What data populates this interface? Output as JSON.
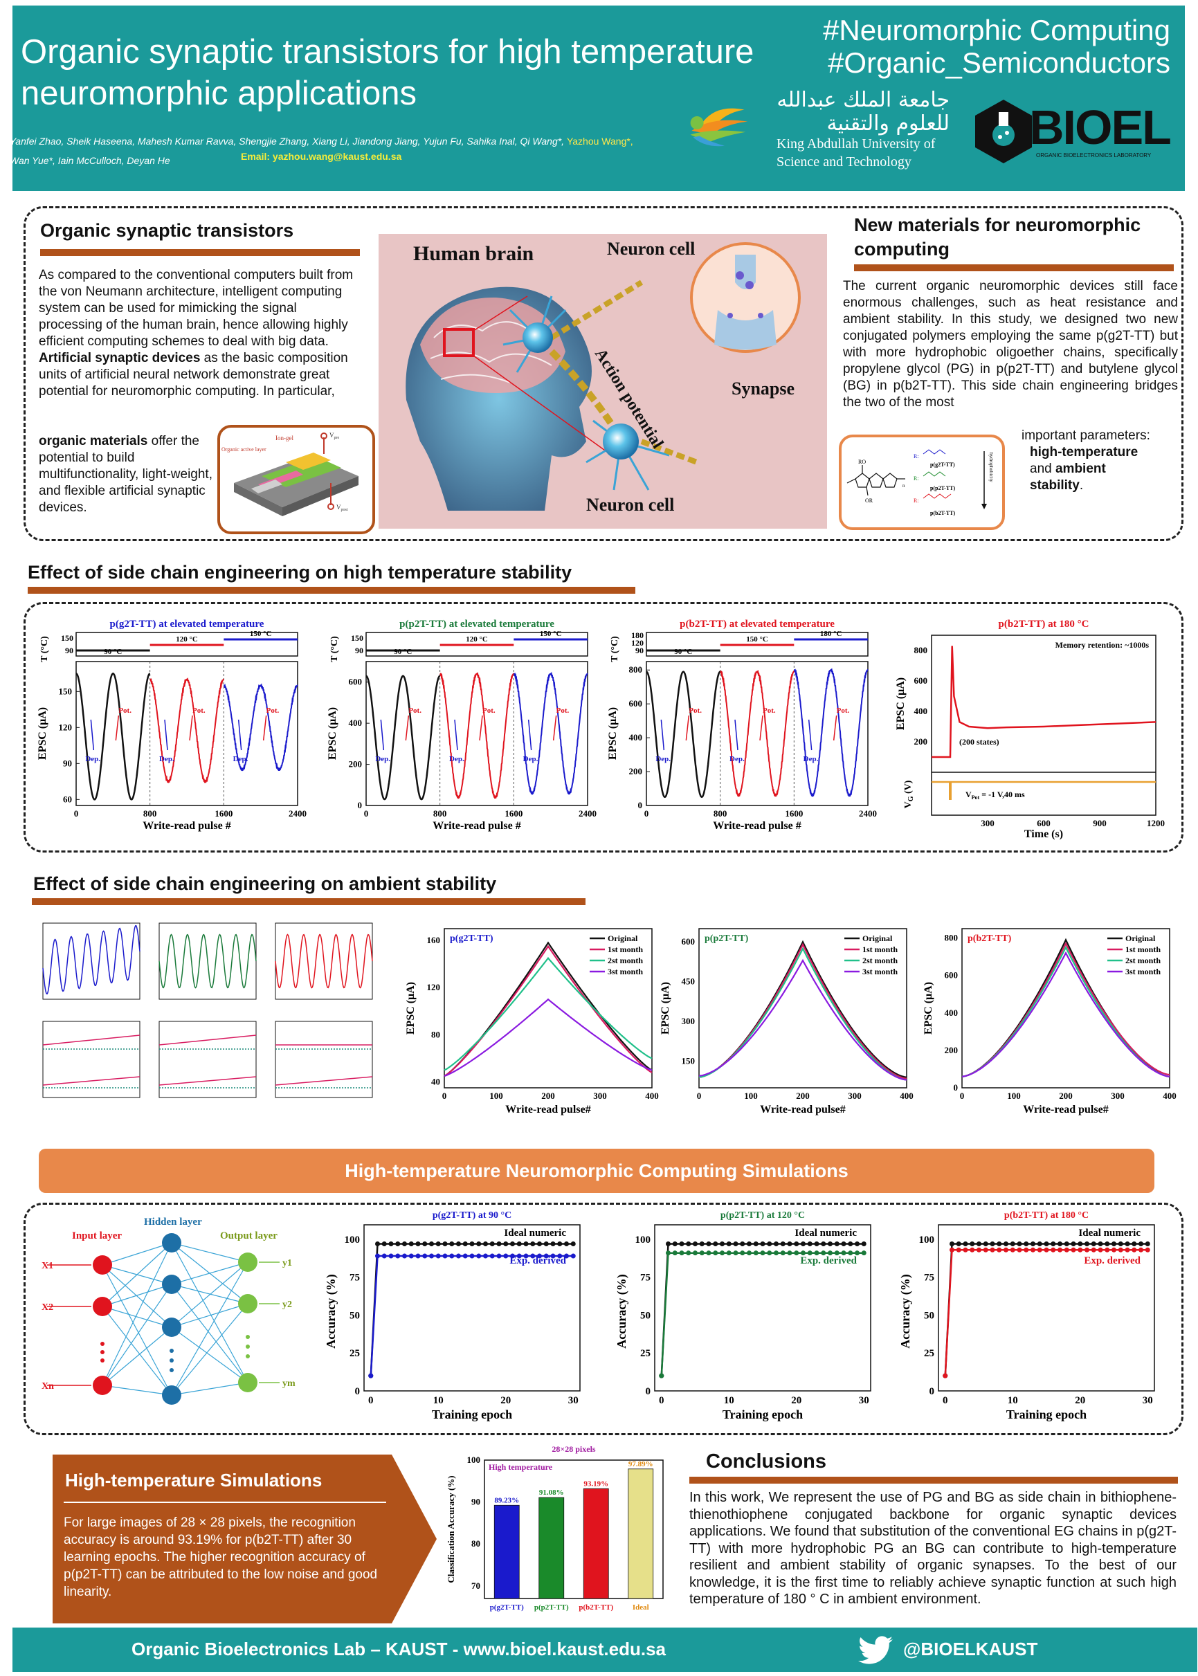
{
  "header": {
    "title_line1": "Organic synaptic transistors for high temperature",
    "title_line2": "neuromorphic applications",
    "hashtag1": "#Neuromorphic Computing",
    "hashtag2": "#Organic_Semiconductors",
    "authors_line1": "Yanfei Zhao, Sheik Haseena, Mahesh Kumar Ravva, Shengjie Zhang, Xiang Li, Jiandong Jiang, Yujun Fu, Sahika Inal, Qi Wang*,",
    "authors_highlight": "Yazhou Wang*,",
    "authors_line2": "Wan Yue*, Iain McCulloch, Deyan He",
    "email": "Email: yazhou.wang@kaust.edu.sa",
    "kaust_arabic_1": "جامعة الملك عبدالله",
    "kaust_arabic_2": "للعلوم والتقنية",
    "kaust_name_1": "King Abdullah University of",
    "kaust_name_2": "Science and Technology",
    "bioel_logo_text": "BIOEL",
    "bioel_sub": "ORGANIC BIOELECTRONICS LABORATORY"
  },
  "section1": {
    "left_title": "Organic synaptic transistors",
    "left_text": "As compared to the conventional computers built from the von Neumann architecture, intelligent computing system can be used for mimicking the signal processing of the human brain, hence allowing highly efficient computing schemes to deal with big data.",
    "left_bold1": "Artificial synaptic devices",
    "left_text2": " as the basic composition units of artificial neural network demonstrate great potential for neuromorphic computing. In particular,",
    "left_bold2": "organic materials",
    "left_text3": " offer the potential to build multifunctionality, light-weight, and flexible artificial synaptic devices.",
    "device_label_gel": "Ion-gel",
    "device_label_layer": "Organic active layer",
    "device_label_vpre": "V",
    "device_label_vpost": "V",
    "brain_label": "Human brain",
    "neuron_label_top": "Neuron cell",
    "neuron_label_bottom": "Neuron cell",
    "synapse_label": "Synapse",
    "action_label": "Action potential",
    "right_title": "New materials for neuromorphic computing",
    "right_text": "The current organic neuromorphic devices still face enormous challenges, such as heat resistance and ambient stability. In this study, we designed two new conjugated polymers employing the same p(g2T-TT) but with more hydrophobic oligoether chains, specifically propylene glycol (PG) in p(p2T-TT) and butylene glycol (BG) in p(b2T-TT). This side chain engineering bridges the two of the most",
    "right_text_tail": "important parameters:",
    "right_bold1": "high-temperature",
    "right_and": "and",
    "right_bold2": "ambient",
    "right_bold3": "stability",
    "right_period": ".",
    "chem_labels": [
      "p(g2T-TT)",
      "p(p2T-TT)",
      "p(b2T-TT)"
    ],
    "chem_hydro": "hydrophobicity"
  },
  "section2": {
    "title": "Effect of side chain engineering on high temperature stability",
    "xlabel": "Write-read pulse #",
    "ylabel": "EPSC (μA)",
    "tlabel": "T (°C)",
    "dep": "Dep.",
    "pot": "Pot.",
    "retention_time_label": "Time (s)",
    "memory_label": "Memory retention: ~1000s",
    "states_label": "(200 states)",
    "vg_label": "V",
    "vpot_label": "V",
    "vpot_value": " = -1 V,40 ms"
  },
  "section3": {
    "title": "Effect of side chain engineering on ambient  stability",
    "xlabel": "Write-read pulse#",
    "ylabel": "EPSC (μA)",
    "legend": [
      "Original",
      "1st month",
      "2st month",
      "3st month"
    ]
  },
  "section4": {
    "banner": "High-temperature Neuromorphic Computing Simulations",
    "input_layer": "Input layer",
    "hidden_layer": "Hidden layer",
    "output_layer": "Output layer",
    "inputs": [
      "X1",
      "X2",
      "Xn"
    ],
    "outputs": [
      "y1",
      "y2",
      "ym"
    ],
    "xlabel": "Training epoch",
    "ylabel": "Accuracy (%)",
    "ideal": "Ideal numeric",
    "exp": "Exp. derived"
  },
  "section5": {
    "sim_title": "High-temperature Simulations",
    "sim_text": "For large images of 28 × 28 pixels, the recognition accuracy is around 93.19% for p(b2T-TT) after 30 learning epochs. The higher recognition accuracy of p(p2T-TT) can be attributed to the low noise and good linearity.",
    "conclusions_title": "Conclusions",
    "conclusions_text": "In this work, We represent the use of PG and BG as side chain in bithiophene-thienothiophene conjugated backbone for organic synaptic devices applications. We found that substitution of the conventional EG chains in p(g2T-TT) with more hydrophobic PG an BG can contribute to high-temperature resilient and ambient stability of organic synapses. To the best of our knowledge, it is the first time to reliably achieve synaptic function at such high temperature of 180 ° C in ambient environment."
  },
  "footer": {
    "left": "Organic Bioelectronics Lab – KAUST - www.bioel.kaust.edu.sa",
    "right": "@BIOELKAUST"
  },
  "colors": {
    "teal": "#1b9a9a",
    "rust": "#b0521a",
    "orange": "#e8884a",
    "black_series": "#111111",
    "red_series": "#e0141e",
    "blue_series": "#1a1acc",
    "green_series": "#1a7a3a"
  },
  "chart_data": [
    {
      "type": "line",
      "title": "p(g2T-TT) at elevated temperature",
      "xlabel": "Write-read pulse #",
      "ylabel": "EPSC (μA)",
      "xlim": [
        0,
        2400
      ],
      "ylim": [
        55,
        175
      ],
      "xticks": [
        0,
        800,
        1600,
        2400
      ],
      "yticks": [
        60,
        90,
        120,
        150
      ],
      "temperatures": [
        "90 °C",
        "120 °C",
        "150 °C"
      ],
      "t_axis_ticks": [
        90,
        150
      ],
      "series": [
        {
          "segment": [
            0,
            800
          ],
          "min": 60,
          "max": 165
        },
        {
          "segment": [
            800,
            1600
          ],
          "min": 75,
          "max": 160
        },
        {
          "segment": [
            1600,
            2400
          ],
          "min": 85,
          "max": 155
        }
      ]
    },
    {
      "type": "line",
      "title": "p(p2T-TT) at elevated temperature",
      "xlabel": "Write-read pulse #",
      "ylabel": "EPSC (μA)",
      "xlim": [
        0,
        2400
      ],
      "ylim": [
        0,
        700
      ],
      "xticks": [
        0,
        800,
        1600,
        2400
      ],
      "yticks": [
        0,
        200,
        400,
        600
      ],
      "temperatures": [
        "90 °C",
        "120 °C",
        "150 °C"
      ],
      "t_axis_ticks": [
        90,
        150
      ],
      "series": [
        {
          "segment": [
            0,
            800
          ],
          "min": 30,
          "max": 630
        },
        {
          "segment": [
            800,
            1600
          ],
          "min": 40,
          "max": 640
        },
        {
          "segment": [
            1600,
            2400
          ],
          "min": 60,
          "max": 640
        }
      ]
    },
    {
      "type": "line",
      "title": "p(b2T-TT) at elevated temperature",
      "xlabel": "Write-read pulse #",
      "ylabel": "EPSC (μA)",
      "xlim": [
        0,
        2400
      ],
      "ylim": [
        0,
        850
      ],
      "xticks": [
        0,
        800,
        1600,
        2400
      ],
      "yticks": [
        0,
        200,
        400,
        600,
        800
      ],
      "temperatures": [
        "90 °C",
        "150 °C",
        "180 °C"
      ],
      "t_axis_ticks": [
        90,
        120,
        180
      ],
      "series": [
        {
          "segment": [
            0,
            800
          ],
          "min": 50,
          "max": 790
        },
        {
          "segment": [
            800,
            1600
          ],
          "min": 60,
          "max": 790
        },
        {
          "segment": [
            1600,
            2400
          ],
          "min": 60,
          "max": 800
        }
      ]
    },
    {
      "type": "line",
      "title": "p(b2T-TT) at 180 °C",
      "xlabel": "Time (s)",
      "ylabel": "EPSC (μA)",
      "xlim": [
        0,
        1200
      ],
      "ylim": [
        0,
        900
      ],
      "xticks": [
        300,
        600,
        900,
        1200
      ],
      "yticks": [
        200,
        400,
        600,
        800
      ],
      "x": [
        0,
        100,
        110,
        120,
        150,
        200,
        300,
        400,
        600,
        800,
        1000,
        1200
      ],
      "y": [
        100,
        100,
        830,
        500,
        330,
        300,
        290,
        295,
        300,
        310,
        320,
        330
      ]
    },
    {
      "type": "line",
      "title": "p(g2T-TT)",
      "xlabel": "Write-read pulse#",
      "ylabel": "EPSC (μA)",
      "xlim": [
        0,
        400
      ],
      "ylim": [
        35,
        170
      ],
      "xticks": [
        0,
        100,
        200,
        300,
        400
      ],
      "yticks": [
        40,
        80,
        120,
        160
      ],
      "series": [
        {
          "name": "Original",
          "peak": 158,
          "start": 45,
          "end": 50
        },
        {
          "name": "1st month",
          "peak": 155,
          "start": 45,
          "end": 48
        },
        {
          "name": "2st month",
          "peak": 145,
          "start": 50,
          "end": 60
        },
        {
          "name": "3st month",
          "peak": 110,
          "start": 45,
          "end": 50
        }
      ]
    },
    {
      "type": "line",
      "title": "p(p2T-TT)",
      "xlabel": "Write-read pulse#",
      "ylabel": "EPSC (μA)",
      "xlim": [
        0,
        400
      ],
      "ylim": [
        50,
        650
      ],
      "xticks": [
        0,
        100,
        200,
        300,
        400
      ],
      "yticks": [
        150,
        300,
        450,
        600
      ],
      "series": [
        {
          "name": "Original",
          "peak": 600,
          "start": 90,
          "end": 90
        },
        {
          "name": "1st month",
          "peak": 590,
          "start": 90,
          "end": 85
        },
        {
          "name": "2st month",
          "peak": 575,
          "start": 90,
          "end": 80
        },
        {
          "name": "3st month",
          "peak": 530,
          "start": 95,
          "end": 80
        }
      ]
    },
    {
      "type": "line",
      "title": "p(b2T-TT)",
      "xlabel": "Write-read pulse#",
      "ylabel": "EPSC (μA)",
      "xlim": [
        0,
        400
      ],
      "ylim": [
        0,
        850
      ],
      "xticks": [
        0,
        100,
        200,
        300,
        400
      ],
      "yticks": [
        0,
        200,
        400,
        600,
        800
      ],
      "series": [
        {
          "name": "Original",
          "peak": 790,
          "start": 60,
          "end": 60
        },
        {
          "name": "1st month",
          "peak": 770,
          "start": 60,
          "end": 70
        },
        {
          "name": "2st month",
          "peak": 750,
          "start": 60,
          "end": 60
        },
        {
          "name": "3st month",
          "peak": 720,
          "start": 60,
          "end": 60
        }
      ]
    },
    {
      "type": "line",
      "title": "p(g2T-TT) at 90 °C",
      "xlabel": "Training epoch",
      "ylabel": "Accuracy (%)",
      "xlim": [
        -1,
        31
      ],
      "ylim": [
        0,
        105
      ],
      "xticks": [
        0,
        10,
        20,
        30
      ],
      "yticks": [
        0,
        25,
        50,
        75,
        100
      ],
      "series": [
        {
          "name": "Ideal numeric",
          "start": 10,
          "value": 97
        },
        {
          "name": "Exp. derived",
          "start": 10,
          "value": 89
        }
      ]
    },
    {
      "type": "line",
      "title": "p(p2T-TT) at 120 °C",
      "xlabel": "Training epoch",
      "ylabel": "Accuracy (%)",
      "xlim": [
        -1,
        31
      ],
      "ylim": [
        0,
        105
      ],
      "xticks": [
        0,
        10,
        20,
        30
      ],
      "yticks": [
        0,
        25,
        50,
        75,
        100
      ],
      "series": [
        {
          "name": "Ideal numeric",
          "start": 10,
          "value": 97
        },
        {
          "name": "Exp. derived",
          "start": 10,
          "value": 91
        }
      ]
    },
    {
      "type": "line",
      "title": "p(b2T-TT) at 180 °C",
      "xlabel": "Training epoch",
      "ylabel": "Accuracy (%)",
      "xlim": [
        -1,
        31
      ],
      "ylim": [
        0,
        105
      ],
      "xticks": [
        0,
        10,
        20,
        30
      ],
      "yticks": [
        0,
        25,
        50,
        75,
        100
      ],
      "series": [
        {
          "name": "Ideal numeric",
          "start": 10,
          "value": 97
        },
        {
          "name": "Exp. derived",
          "start": 10,
          "value": 93
        }
      ]
    },
    {
      "type": "bar",
      "title": "28×28 pixels",
      "subtitle": "High temperature",
      "ylabel": "Classification Accuracy (%)",
      "ylim": [
        67,
        100
      ],
      "yticks": [
        70,
        80,
        90,
        100
      ],
      "categories": [
        "p(g2T-TT)",
        "p(p2T-TT)",
        "p(b2T-TT)",
        "Ideal"
      ],
      "values": [
        89.23,
        91.08,
        93.19,
        97.89
      ],
      "labels": [
        "89.23%",
        "91.08%",
        "93.19%",
        "97.89%"
      ],
      "colors": [
        "#1a1acc",
        "#1a8a2a",
        "#e0141e",
        "#e6e08a"
      ]
    }
  ]
}
